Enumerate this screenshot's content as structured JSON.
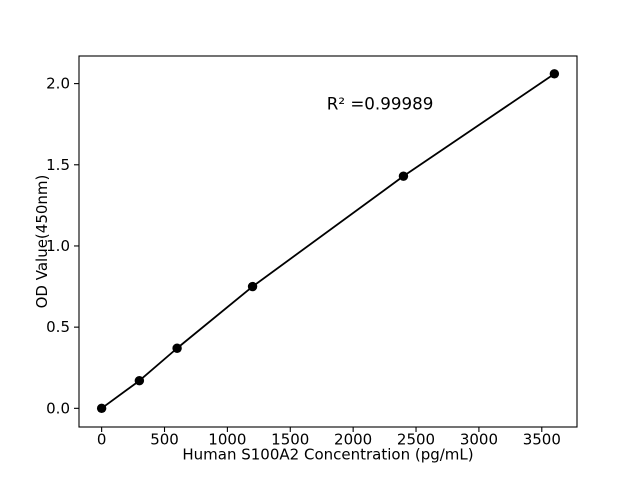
{
  "figure": {
    "background": "#ffffff"
  },
  "chart_data": {
    "type": "line",
    "title": "",
    "xlabel": "Human S100A2 Concentration (pg/mL)",
    "ylabel": "OD Value(450nm)",
    "series": [
      {
        "name": "standard-curve",
        "x": [
          0,
          300,
          600,
          1200,
          2400,
          3600
        ],
        "y": [
          0.0,
          0.17,
          0.37,
          0.75,
          1.43,
          2.06
        ],
        "line_color": "#000000",
        "marker": "circle",
        "marker_color": "#000000"
      }
    ],
    "xtick_values": [
      0,
      500,
      1000,
      1500,
      2000,
      2500,
      3000,
      3500
    ],
    "xticks": [
      "0",
      "500",
      "1000",
      "1500",
      "2000",
      "2500",
      "3000",
      "3500"
    ],
    "ytick_values": [
      0.0,
      0.5,
      1.0,
      1.5,
      2.0
    ],
    "yticks": [
      "0.0",
      "0.5",
      "1.0",
      "1.5",
      "2.0"
    ],
    "xlim": [
      -180,
      3780
    ],
    "ylim": [
      -0.115,
      2.17
    ],
    "grid": false,
    "legend": null,
    "annotation": {
      "text": "R² =0.99989",
      "x": 1790,
      "y": 1.84
    },
    "axis_color": "#000000",
    "text_color": "#000000"
  }
}
